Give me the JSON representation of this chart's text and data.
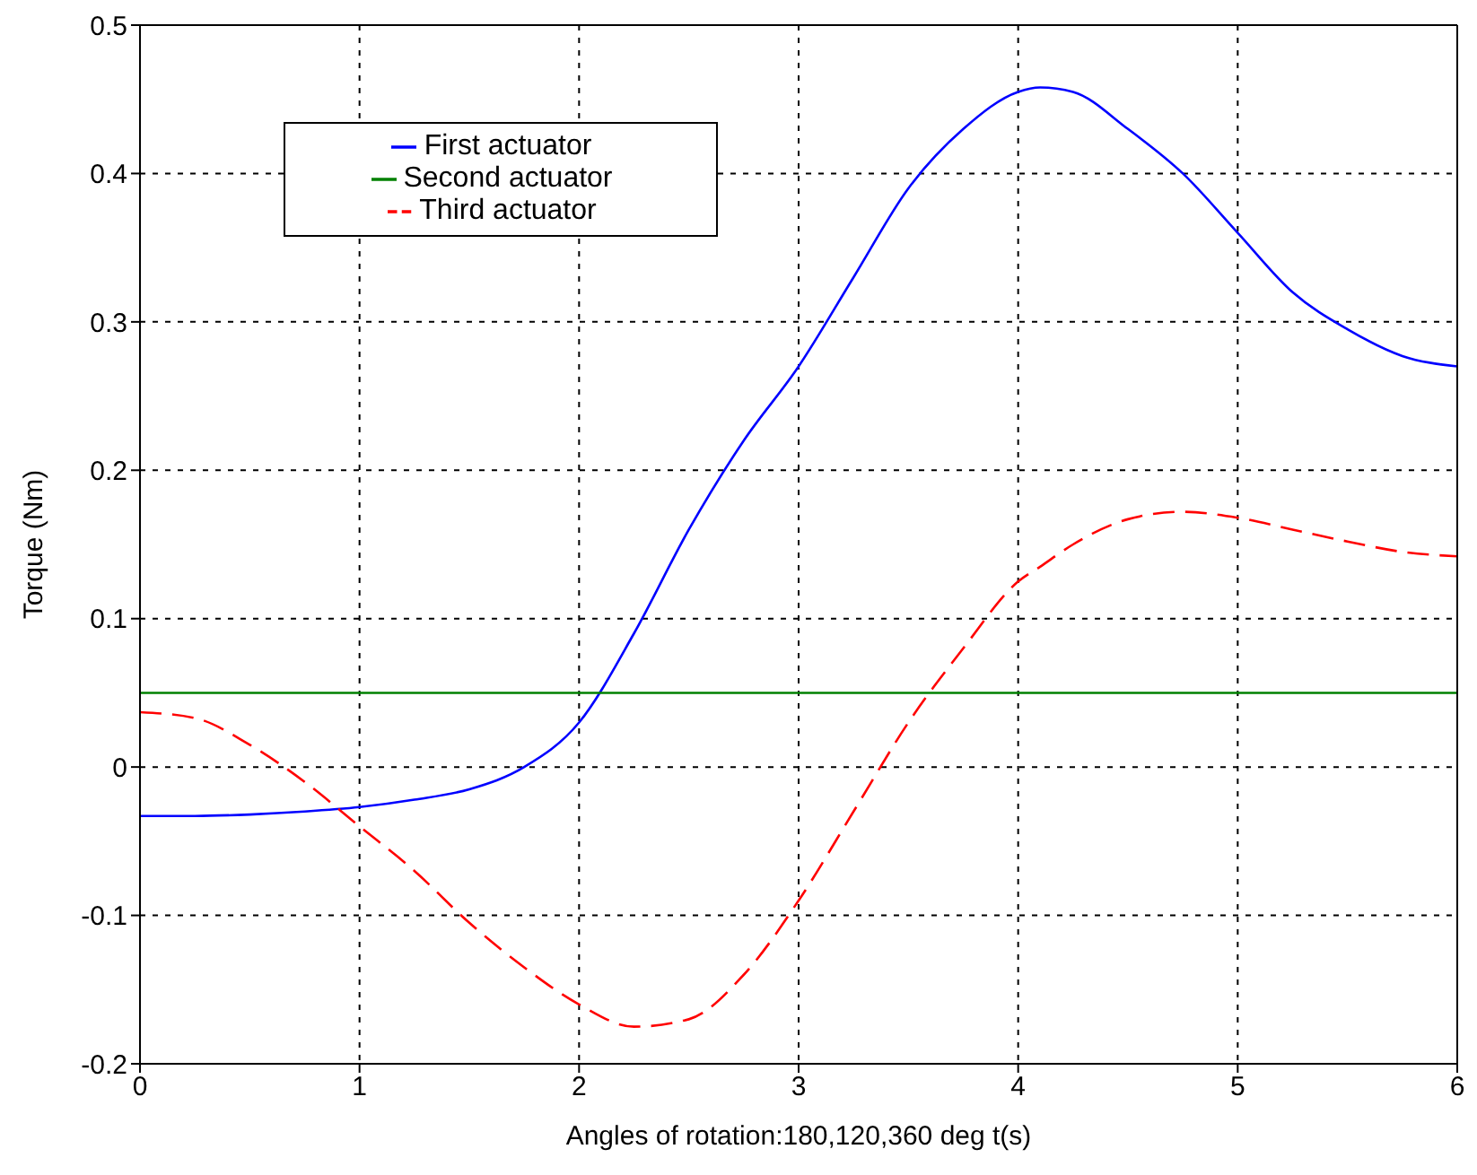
{
  "chart_data": {
    "type": "line",
    "xlabel": "Angles of rotation:180,120,360 deg t(s)",
    "ylabel": "Torque (Nm)",
    "x": [
      0,
      0.25,
      0.5,
      0.75,
      1,
      1.25,
      1.5,
      1.75,
      2,
      2.25,
      2.5,
      2.75,
      3,
      3.25,
      3.5,
      3.75,
      4,
      4.1,
      4.25,
      4.5,
      4.75,
      5,
      5.25,
      5.5,
      5.75,
      6
    ],
    "series": [
      {
        "name": "First actuator",
        "color": "#0000ff",
        "line_style": "solid",
        "values": [
          -0.033,
          -0.033,
          -0.032,
          -0.03,
          -0.027,
          -0.022,
          -0.015,
          0,
          0.03,
          0.09,
          0.16,
          0.22,
          0.27,
          0.33,
          0.39,
          0.43,
          0.455,
          0.458,
          0.455,
          0.43,
          0.4,
          0.36,
          0.32,
          0.295,
          0.277,
          0.27
        ]
      },
      {
        "name": "Second actuator",
        "color": "#008000",
        "line_style": "solid",
        "values": [
          0.05,
          0.05,
          0.05,
          0.05,
          0.05,
          0.05,
          0.05,
          0.05,
          0.05,
          0.05,
          0.05,
          0.05,
          0.05,
          0.05,
          0.05,
          0.05,
          0.05,
          0.05,
          0.05,
          0.05,
          0.05,
          0.05,
          0.05,
          0.05,
          0.05,
          0.05
        ]
      },
      {
        "name": "Third actuator",
        "color": "#ff0000",
        "line_style": "dashed",
        "values": [
          0.037,
          0.033,
          0.015,
          -0.01,
          -0.04,
          -0.07,
          -0.105,
          -0.135,
          -0.16,
          -0.175,
          -0.17,
          -0.14,
          -0.09,
          -0.03,
          0.03,
          0.08,
          0.125,
          0.135,
          0.15,
          0.167,
          0.172,
          0.168,
          0.16,
          0.152,
          0.145,
          0.142
        ]
      }
    ],
    "xlim": [
      0,
      6
    ],
    "xticks": [
      0,
      1,
      2,
      3,
      4,
      5,
      6
    ],
    "ylim": [
      -0.2,
      0.5
    ],
    "yticks": [
      -0.2,
      -0.1,
      0,
      0.1,
      0.2,
      0.3,
      0.4,
      0.5
    ],
    "grid": true,
    "legend": "top left",
    "marker": "none"
  }
}
